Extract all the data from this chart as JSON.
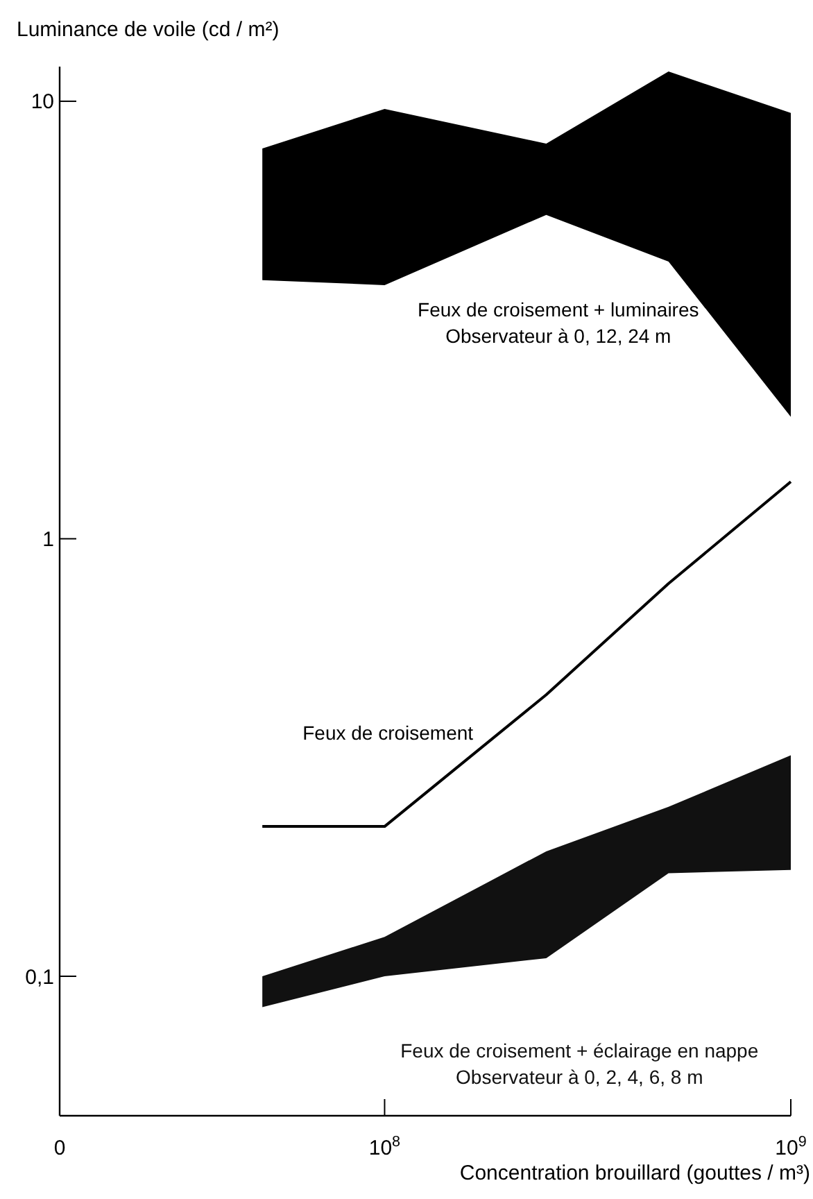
{
  "chart_data": {
    "type": "line",
    "xlabel": "Concentration brouillard (gouttes / m³)",
    "ylabel": "Luminance de voile (cd / m²)",
    "log": "xy",
    "legend": false,
    "grid": false,
    "x": [
      50000000,
      100000000,
      250000000,
      500000000,
      1000000000
    ],
    "xlim": [
      0,
      1000000000
    ],
    "xticks": [
      0,
      {
        "value": 100000000,
        "label": "10$^{8}$"
      },
      {
        "value": 1000000000,
        "label": "10$^{9}$"
      }
    ],
    "ylim": [
      0.048,
      12
    ],
    "yticks": [
      {
        "value": 0.1,
        "label": "0,1"
      },
      1,
      10
    ],
    "series": [
      {
        "name": "Feux de croisement + luminaires\nObservateur à 0, 12, 24 m",
        "color": "#000000",
        "values": [
          null,
          null,
          null,
          null,
          null
        ],
        "upper": [
          7.8,
          9.6,
          8.0,
          11.7,
          9.4
        ],
        "lower": [
          3.9,
          3.8,
          5.5,
          4.3,
          1.9
        ]
      },
      {
        "name": "Feux de croisement",
        "color": "#000000",
        "values": [
          0.22,
          0.22,
          0.44,
          0.79,
          1.35
        ]
      },
      {
        "name": "Feux de croisement + éclairage en nappe\nObservateur à 0, 2, 4, 6, 8 m",
        "color": "#111111",
        "values": [
          null,
          null,
          null,
          null,
          null
        ],
        "upper": [
          0.1,
          0.123,
          0.193,
          0.244,
          0.32
        ],
        "lower": [
          0.085,
          0.1,
          0.11,
          0.172,
          0.175
        ]
      }
    ]
  }
}
